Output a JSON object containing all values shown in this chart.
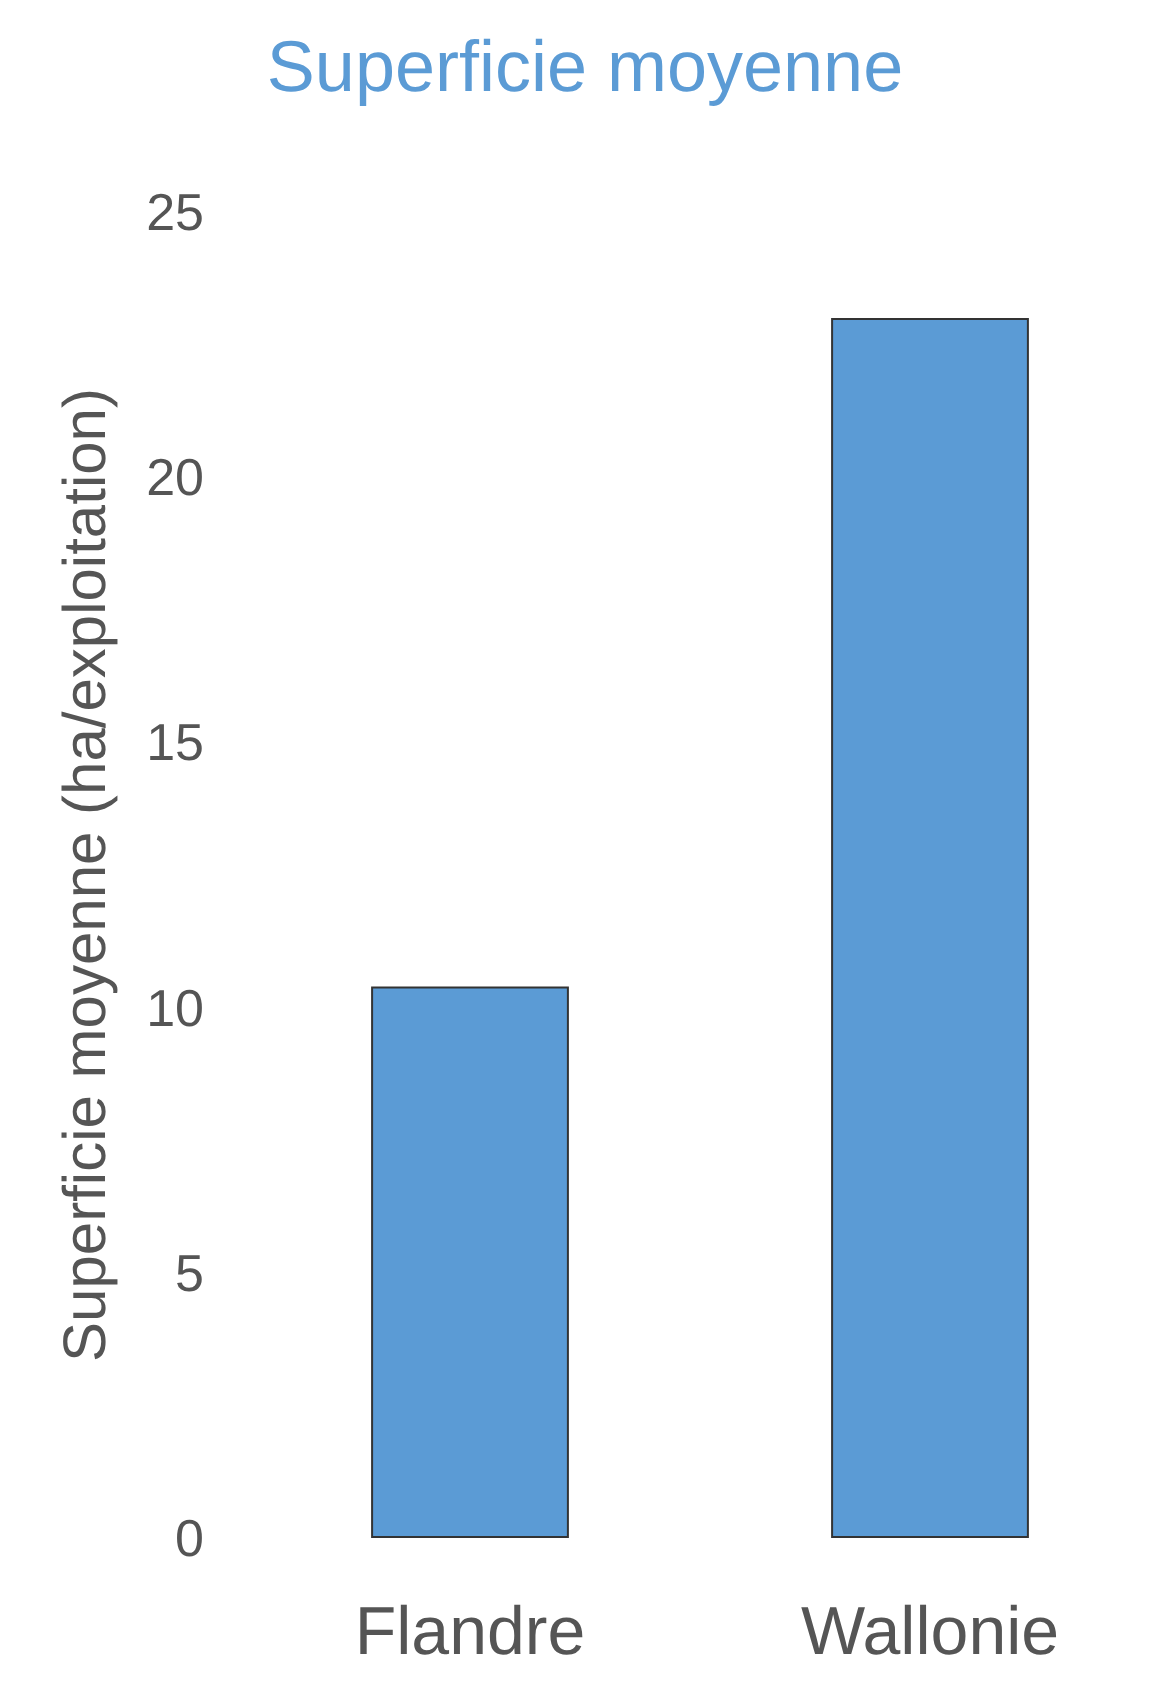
{
  "chart_data": {
    "type": "bar",
    "title": "Superficie moyenne",
    "ylabel": "Superficie moyenne (ha/exploitation)",
    "categories": [
      "Flandre",
      "Wallonie"
    ],
    "values": [
      10.4,
      23.0
    ],
    "color": "#5b9bd5",
    "ylim": [
      0,
      25
    ],
    "yticks": [
      0,
      5,
      10,
      15,
      20,
      25
    ],
    "grid": false
  }
}
